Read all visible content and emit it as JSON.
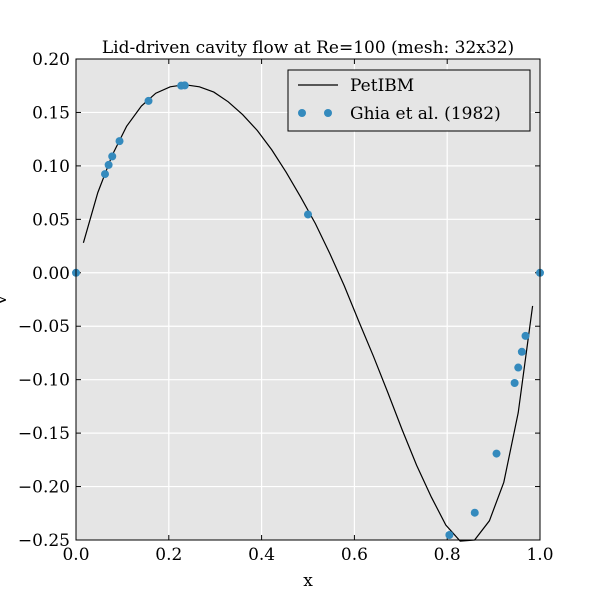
{
  "chart_data": {
    "type": "line",
    "title": "Lid-driven cavity flow at Re=100 (mesh: 32x32)",
    "xlabel": "x",
    "ylabel": "v",
    "xlim": [
      0.0,
      1.0
    ],
    "ylim": [
      -0.25,
      0.2
    ],
    "xticks": [
      0.0,
      0.2,
      0.4,
      0.6,
      0.8,
      1.0
    ],
    "xtick_labels": [
      "0.0",
      "0.2",
      "0.4",
      "0.6",
      "0.8",
      "1.0"
    ],
    "yticks": [
      -0.25,
      -0.2,
      -0.15,
      -0.1,
      -0.05,
      0.0,
      0.05,
      0.1,
      0.15,
      0.2
    ],
    "ytick_labels": [
      "−0.25",
      "−0.20",
      "−0.15",
      "−0.10",
      "−0.05",
      "0.00",
      "0.05",
      "0.10",
      "0.15",
      "0.20"
    ],
    "grid": true,
    "legend_position": "top-right",
    "colors": {
      "background": "#e5e5e5",
      "grid": "#ffffff",
      "line": "#000000",
      "points": "#348abd"
    },
    "series": [
      {
        "name": "PetIBM",
        "style": "line",
        "x": [
          0.016,
          0.047,
          0.078,
          0.109,
          0.141,
          0.172,
          0.203,
          0.234,
          0.266,
          0.297,
          0.328,
          0.359,
          0.391,
          0.422,
          0.453,
          0.484,
          0.516,
          0.547,
          0.578,
          0.609,
          0.641,
          0.672,
          0.703,
          0.734,
          0.766,
          0.797,
          0.828,
          0.859,
          0.891,
          0.922,
          0.953,
          0.984
        ],
        "y": [
          0.028,
          0.075,
          0.11,
          0.137,
          0.156,
          0.168,
          0.174,
          0.176,
          0.174,
          0.169,
          0.16,
          0.148,
          0.133,
          0.115,
          0.094,
          0.071,
          0.046,
          0.018,
          -0.012,
          -0.045,
          -0.078,
          -0.112,
          -0.147,
          -0.18,
          -0.21,
          -0.236,
          -0.251,
          -0.25,
          -0.232,
          -0.196,
          -0.131,
          -0.031
        ]
      },
      {
        "name": "Ghia et al. (1982)",
        "style": "scatter",
        "x": [
          0.0,
          0.0625,
          0.0703,
          0.0781,
          0.0938,
          0.1563,
          0.2266,
          0.2344,
          0.5,
          0.8047,
          0.8594,
          0.9063,
          0.9453,
          0.9531,
          0.9609,
          0.9688,
          1.0
        ],
        "y": [
          0.0,
          0.09233,
          0.10091,
          0.1089,
          0.12317,
          0.16077,
          0.17507,
          0.17527,
          0.05454,
          -0.24533,
          -0.22445,
          -0.16914,
          -0.10313,
          -0.08864,
          -0.07391,
          -0.05906,
          0.0
        ]
      }
    ]
  }
}
